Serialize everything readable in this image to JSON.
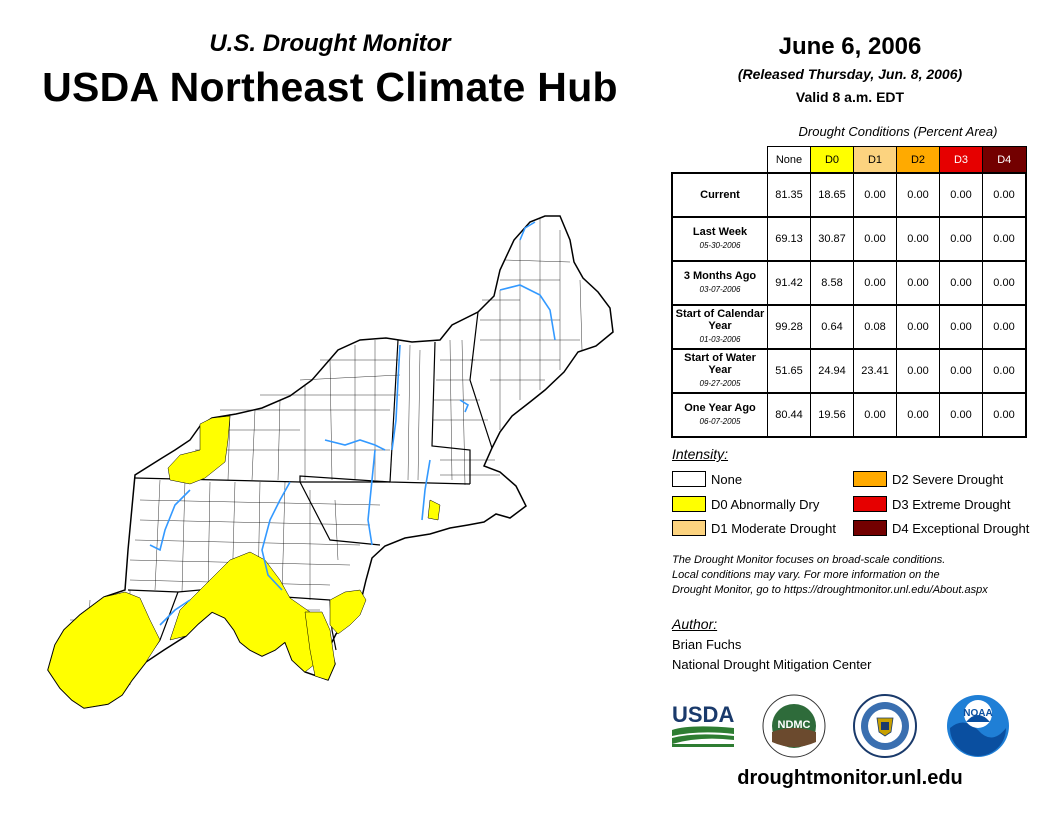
{
  "header": {
    "subtitle": "U.S. Drought Monitor",
    "title": "USDA Northeast Climate Hub",
    "date": "June 6, 2006",
    "released": "(Released Thursday, Jun. 8, 2006)",
    "valid": "Valid 8 a.m. EDT"
  },
  "table": {
    "caption": "Drought Conditions (Percent Area)",
    "columns": [
      "None",
      "D0",
      "D1",
      "D2",
      "D3",
      "D4"
    ],
    "column_colors": [
      "#ffffff",
      "#ffff00",
      "#fcd37f",
      "#ffaa00",
      "#e60000",
      "#730000"
    ],
    "rows": [
      {
        "label": "Current",
        "date": "",
        "values": [
          "81.35",
          "18.65",
          "0.00",
          "0.00",
          "0.00",
          "0.00"
        ]
      },
      {
        "label": "Last Week",
        "date": "05-30-2006",
        "values": [
          "69.13",
          "30.87",
          "0.00",
          "0.00",
          "0.00",
          "0.00"
        ]
      },
      {
        "label": "3 Months Ago",
        "date": "03-07-2006",
        "values": [
          "91.42",
          "8.58",
          "0.00",
          "0.00",
          "0.00",
          "0.00"
        ]
      },
      {
        "label": "Start of Calendar Year",
        "date": "01-03-2006",
        "values": [
          "99.28",
          "0.64",
          "0.08",
          "0.00",
          "0.00",
          "0.00"
        ]
      },
      {
        "label": "Start of Water Year",
        "date": "09-27-2005",
        "values": [
          "51.65",
          "24.94",
          "23.41",
          "0.00",
          "0.00",
          "0.00"
        ]
      },
      {
        "label": "One Year Ago",
        "date": "06-07-2005",
        "values": [
          "80.44",
          "19.56",
          "0.00",
          "0.00",
          "0.00",
          "0.00"
        ]
      }
    ]
  },
  "legend": {
    "title": "Intensity:",
    "items": [
      {
        "label": "None",
        "color": "#ffffff"
      },
      {
        "label": "D0 Abnormally Dry",
        "color": "#ffff00"
      },
      {
        "label": "D1 Moderate Drought",
        "color": "#fcd37f"
      },
      {
        "label": "D2 Severe Drought",
        "color": "#ffaa00"
      },
      {
        "label": "D3 Extreme Drought",
        "color": "#e60000"
      },
      {
        "label": "D4 Exceptional Drought",
        "color": "#730000"
      }
    ]
  },
  "note": [
    "The Drought Monitor focuses on broad-scale conditions.",
    "Local conditions may vary. For more information on the",
    "Drought Monitor, go to https://droughtmonitor.unl.edu/About.aspx"
  ],
  "author": {
    "title": "Author:",
    "name": "Brian Fuchs",
    "org": "National Drought Mitigation Center"
  },
  "logos": {
    "usda": "USDA",
    "ndmc": "NDMC",
    "noaa": "NOAA"
  },
  "website": "droughtmonitor.unl.edu",
  "map": {
    "colors": {
      "land": "#ffffff",
      "drought_d0": "#ffff00",
      "water": "#3399ff",
      "border": "#000000"
    }
  }
}
